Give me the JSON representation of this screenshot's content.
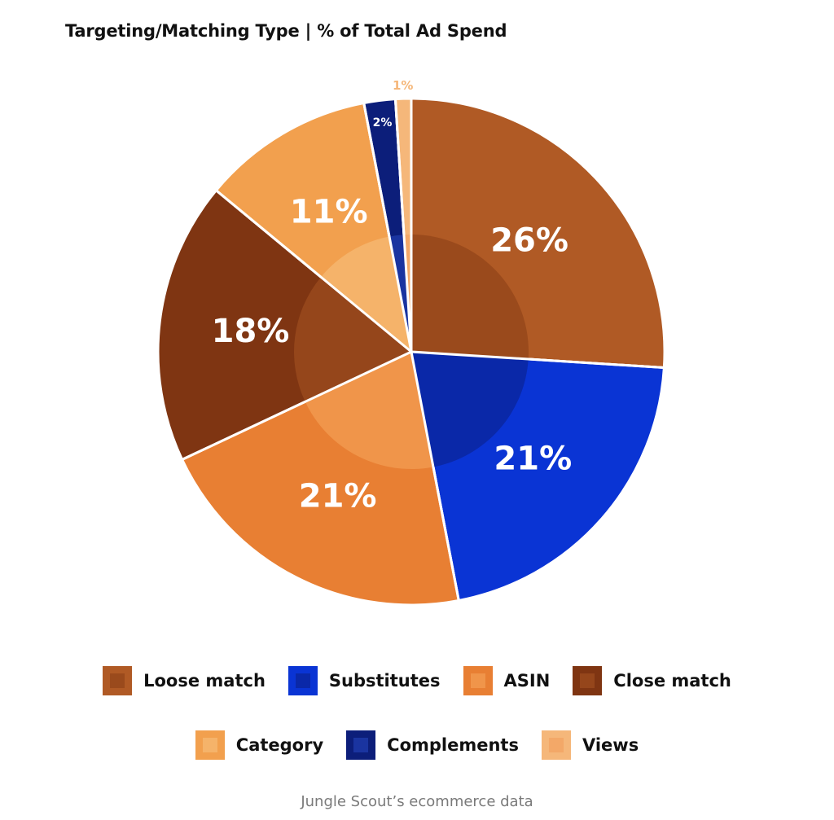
{
  "chart_data": {
    "type": "pie",
    "title": "Targeting/Matching Type  |  % of Total Ad Spend",
    "slices": [
      {
        "label": "Loose match",
        "value": 26,
        "display": "26%",
        "color": "#b05a25",
        "inner": "#9a4a1c"
      },
      {
        "label": "Substitutes",
        "value": 21,
        "display": "21%",
        "color": "#0a34d4",
        "inner": "#0a28a8"
      },
      {
        "label": "ASIN",
        "value": 21,
        "display": "21%",
        "color": "#e87f33",
        "inner": "#f0954a"
      },
      {
        "label": "Close match",
        "value": 18,
        "display": "18%",
        "color": "#7f3512",
        "inner": "#95461b"
      },
      {
        "label": "Category",
        "value": 11,
        "display": "11%",
        "color": "#f2a04e",
        "inner": "#f5b36a"
      },
      {
        "label": "Complements",
        "value": 2,
        "display": "2%",
        "color": "#0c1e7a",
        "inner": "#1a34a0"
      },
      {
        "label": "Views",
        "value": 1,
        "display": "1%",
        "color": "#f5b77a",
        "inner": "#f3a868"
      }
    ],
    "legend": {
      "rows": [
        [
          "Loose match",
          "Substitutes",
          "ASIN",
          "Close match"
        ],
        [
          "Category",
          "Complements",
          "Views"
        ]
      ]
    },
    "source": "Jungle Scout’s ecommerce data"
  }
}
